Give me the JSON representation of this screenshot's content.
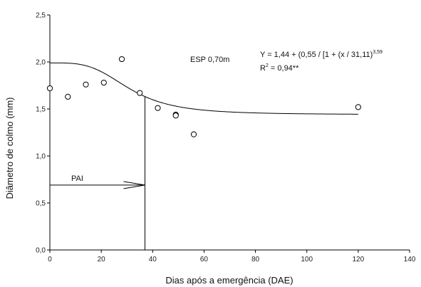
{
  "chart_data": {
    "type": "scatter",
    "title": "",
    "xlabel": "Dias após a emergência (DAE)",
    "ylabel": "Diâmetro de colmo (mm)",
    "xlim": [
      0,
      140
    ],
    "ylim": [
      0,
      2.5
    ],
    "xticks": [
      0,
      20,
      40,
      60,
      80,
      100,
      120,
      140
    ],
    "xtick_labels": [
      "0",
      "20",
      "40",
      "60",
      "80",
      "100",
      "120",
      "140"
    ],
    "yticks": [
      0,
      0.5,
      1.0,
      1.5,
      2.0,
      2.5
    ],
    "ytick_labels": [
      "0,0",
      "0,5",
      "1,0",
      "1,5",
      "2,0",
      "2,5"
    ],
    "grid": false,
    "points": {
      "x": [
        0,
        7,
        14,
        21,
        28,
        35,
        42,
        49,
        49,
        56,
        120
      ],
      "y": [
        1.72,
        1.63,
        1.76,
        1.78,
        2.03,
        1.67,
        1.51,
        1.44,
        1.43,
        1.23,
        1.52
      ]
    },
    "fit": {
      "model": "y = 1.44 + 0.55 / (1 + (x / 31.11)^3.59)",
      "a": 1.44,
      "b": 0.55,
      "c": 31.11,
      "d": 3.59,
      "x_range": [
        0,
        120
      ]
    },
    "pai": {
      "label": "PAI",
      "x": 37,
      "y": 0.69
    },
    "annotations": {
      "esp": "ESP 0,70m",
      "equation_main": "Y = 1,44 + (0,55 / [1 + (x / 31,11)",
      "equation_exp": "3,59",
      "r2_prefix": "R",
      "r2_sup": "2",
      "r2_rest": " = 0,94**"
    }
  }
}
